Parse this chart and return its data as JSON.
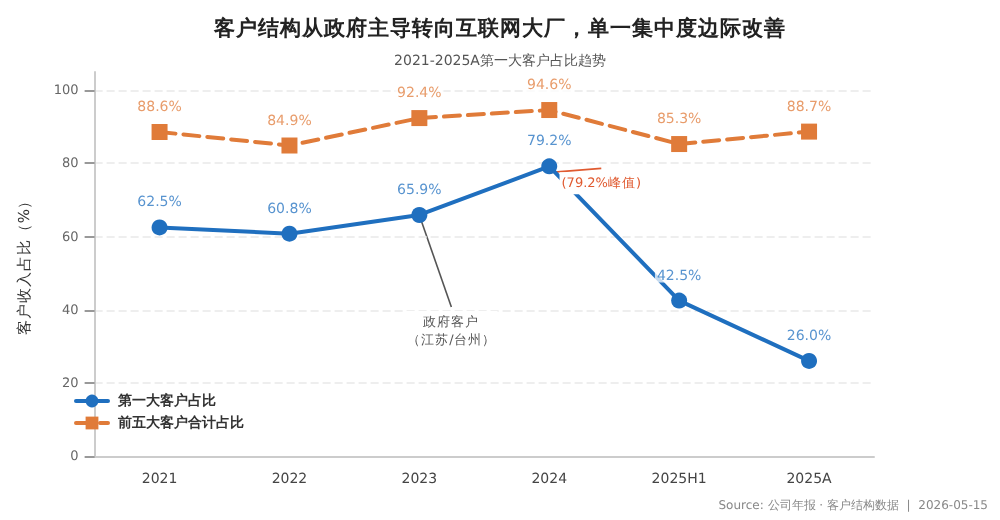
{
  "chart_data": {
    "type": "line",
    "title": "客户结构从政府主导转向互联网大厂，单一集中度边际改善",
    "subtitle": "2021-2025A第一大客户占比趋势",
    "ylabel": "客户收入占比（%）",
    "categories": [
      "2021",
      "2022",
      "2023",
      "2024",
      "2025H1",
      "2025A"
    ],
    "series": [
      {
        "name": "第一大客户占比",
        "color": "#1f6fbf",
        "values": [
          62.5,
          60.8,
          65.9,
          79.2,
          42.5,
          26.0
        ],
        "marker": "circle",
        "line_style": "solid",
        "value_labels": [
          "62.5%",
          "60.8%",
          "65.9%",
          "79.2%",
          "42.5%",
          "26.0%"
        ]
      },
      {
        "name": "前五大客户合计占比",
        "color": "#e07b39",
        "values": [
          88.6,
          84.9,
          92.4,
          94.6,
          85.3,
          88.7
        ],
        "marker": "square",
        "line_style": "dashed",
        "value_labels": [
          "88.6%",
          "84.9%",
          "92.4%",
          "94.6%",
          "85.3%",
          "88.7%"
        ]
      }
    ],
    "ylim": [
      0,
      105
    ],
    "yticks": [
      0,
      20,
      40,
      60,
      80,
      100
    ],
    "grid": "y",
    "legend": "bottom left",
    "annotations": [
      {
        "text": "政府客户（江苏/台州）",
        "x": "2023",
        "y": 65.9
      },
      {
        "text": "(79.2%峰值)",
        "x": "2024",
        "y": 79.2
      },
      "Source: 公司年报 · 客户结构数据  |  2026-05-15"
    ]
  }
}
